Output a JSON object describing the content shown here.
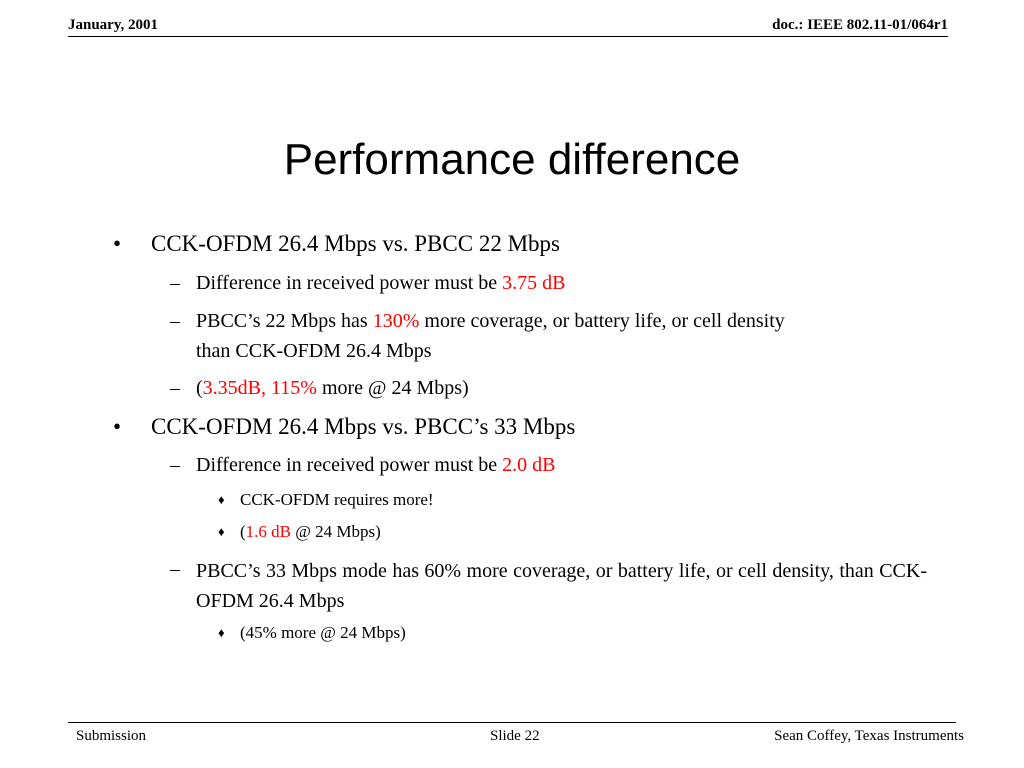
{
  "header": {
    "date": "January, 2001",
    "doc_id": "doc.: IEEE 802.11-01/064r1"
  },
  "slide": {
    "title": "Performance difference",
    "items": [
      {
        "marker": "•",
        "text": "CCK-OFDM 26.4 Mbps vs. PBCC 22 Mbps"
      },
      {
        "marker": "–",
        "text": "Difference in received power must be ",
        "highlight": "3.75 dB"
      },
      {
        "marker": "–",
        "text_a": "PBCC’s 22 Mbps has ",
        "highlight": "130%",
        "text_b": " more coverage, or battery life, or cell density",
        "text_c": "than CCK-OFDM 26.4 Mbps"
      },
      {
        "marker": "–",
        "text_a": "(",
        "highlight": "3.35dB, 115%",
        "text_b": " more @ 24 Mbps)"
      },
      {
        "marker": "•",
        "text": "CCK-OFDM 26.4 Mbps vs. PBCC’s 33 Mbps"
      },
      {
        "marker": "–",
        "text": "Difference in received power must be ",
        "highlight": "2.0 dB"
      },
      {
        "marker": "♦",
        "text": "CCK-OFDM requires more!"
      },
      {
        "marker": "♦",
        "text_a": "(",
        "highlight": "1.6 dB",
        "text_b": " @ 24 Mbps)"
      },
      {
        "marker": "–",
        "text": "PBCC’s 33 Mbps mode has 60% more coverage, or battery life, or cell density,  than CCK-OFDM 26.4 Mbps"
      },
      {
        "marker": "♦",
        "text": "(45% more @ 24 Mbps)"
      }
    ]
  },
  "footer": {
    "left": "Submission",
    "center": "Slide 22",
    "right": "Sean Coffey, Texas Instruments"
  },
  "colors": {
    "highlight": "#ff0000",
    "text": "#000000"
  }
}
